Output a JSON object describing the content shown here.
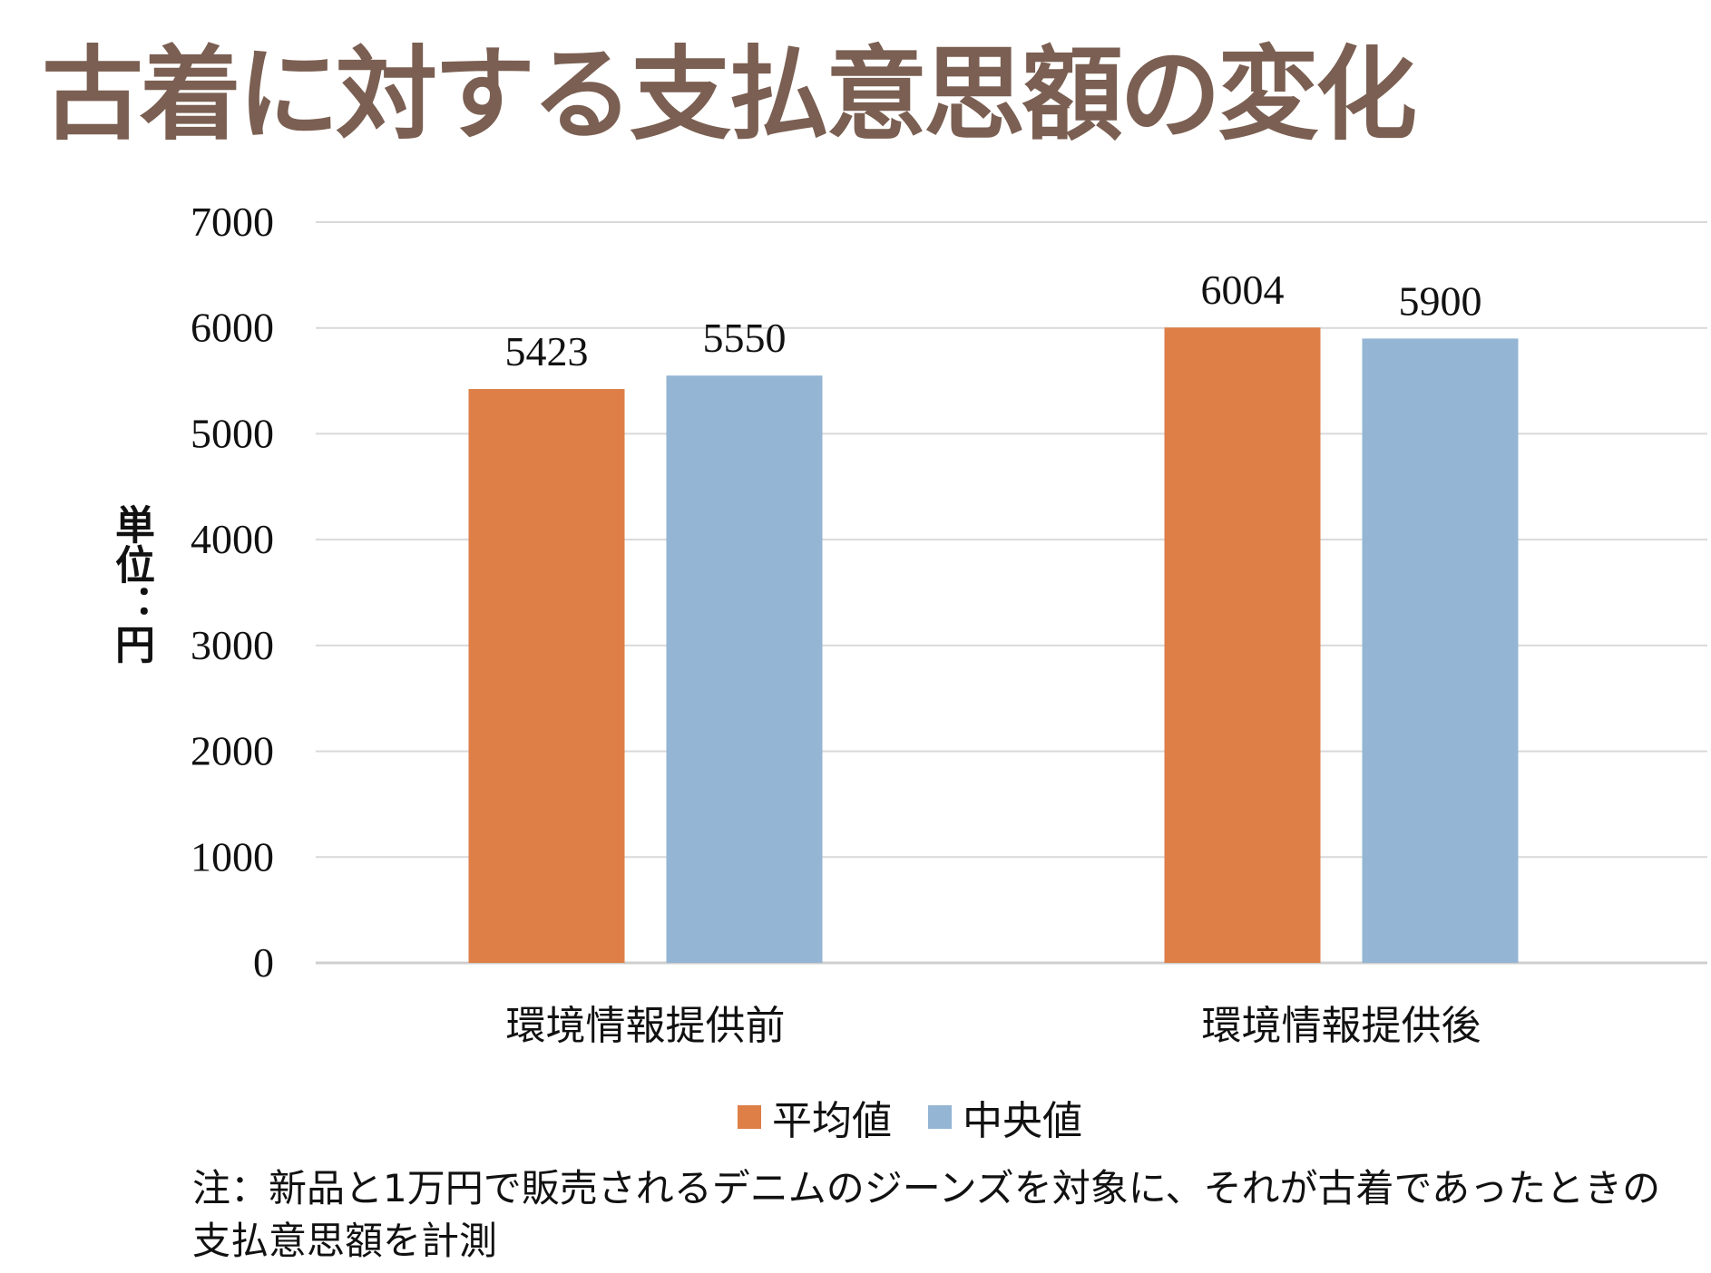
{
  "title": "古着に対する支払意思額の変化",
  "chart_data": {
    "type": "bar",
    "title": "古着に対する支払意思額の変化",
    "ylabel": "単位：円",
    "xlabel": "",
    "ylim": [
      0,
      7000
    ],
    "yticks": [
      "0",
      "1000",
      "2000",
      "3000",
      "4000",
      "5000",
      "6000",
      "7000"
    ],
    "grid": true,
    "legend_position": "bottom",
    "categories": [
      "環境情報提供前",
      "環境情報提供後"
    ],
    "series": [
      {
        "name": "平均値",
        "values": [
          5423,
          6004
        ],
        "labels": [
          "5423",
          "6004"
        ],
        "color": "#dd7f47"
      },
      {
        "name": "中央値",
        "values": [
          5550,
          5900
        ],
        "labels": [
          "5550",
          "5900"
        ],
        "color": "#94b5d3"
      }
    ]
  },
  "note": "注：新品と1万円で販売されるデニムのジーンズを対象に、それが古着であったときの支払意思額を計測"
}
